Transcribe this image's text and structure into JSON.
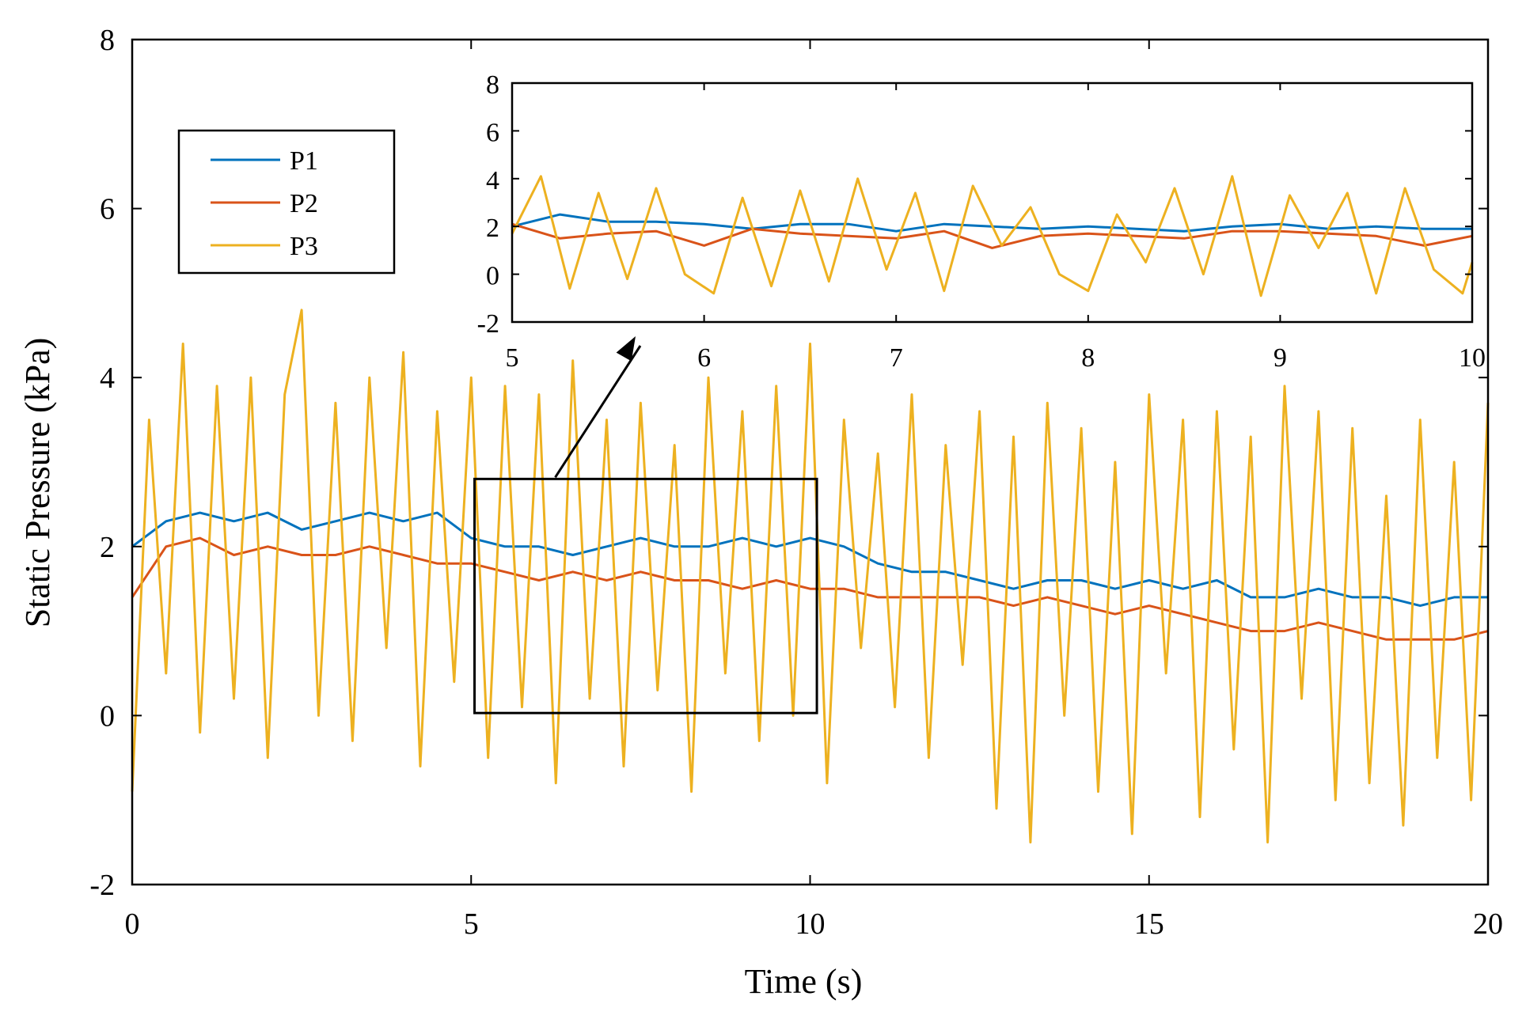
{
  "chart_data": [
    {
      "type": "line",
      "role": "main",
      "xlabel": "Time (s)",
      "ylabel": "Static Pressure (kPa)",
      "xlim": [
        0,
        20
      ],
      "ylim": [
        -2,
        8
      ],
      "xticks": [
        0,
        5,
        10,
        15,
        20
      ],
      "yticks": [
        -2,
        0,
        2,
        4,
        6,
        8
      ],
      "grid": false,
      "legend_position": "top-left",
      "colors": {
        "P1": "#0072BD",
        "P2": "#D95319",
        "P3": "#EDB120"
      },
      "series": [
        {
          "name": "P1",
          "x": [
            0,
            0.5,
            1,
            1.5,
            2,
            2.5,
            3,
            3.5,
            4,
            4.5,
            5,
            5.5,
            6,
            6.5,
            7,
            7.5,
            8,
            8.5,
            9,
            9.5,
            10,
            10.5,
            11,
            11.5,
            12,
            12.5,
            13,
            13.5,
            14,
            14.5,
            15,
            15.5,
            16,
            16.5,
            17,
            17.5,
            18,
            18.5,
            19,
            19.5,
            20
          ],
          "values": [
            2.0,
            2.3,
            2.4,
            2.3,
            2.4,
            2.2,
            2.3,
            2.4,
            2.3,
            2.4,
            2.1,
            2.0,
            2.0,
            1.9,
            2.0,
            2.1,
            2.0,
            2.0,
            2.1,
            2.0,
            2.1,
            2.0,
            1.8,
            1.7,
            1.7,
            1.6,
            1.5,
            1.6,
            1.6,
            1.5,
            1.6,
            1.5,
            1.6,
            1.4,
            1.4,
            1.5,
            1.4,
            1.4,
            1.3,
            1.4,
            1.4
          ]
        },
        {
          "name": "P2",
          "x": [
            0,
            0.5,
            1,
            1.5,
            2,
            2.5,
            3,
            3.5,
            4,
            4.5,
            5,
            5.5,
            6,
            6.5,
            7,
            7.5,
            8,
            8.5,
            9,
            9.5,
            10,
            10.5,
            11,
            11.5,
            12,
            12.5,
            13,
            13.5,
            14,
            14.5,
            15,
            15.5,
            16,
            16.5,
            17,
            17.5,
            18,
            18.5,
            19,
            19.5,
            20
          ],
          "values": [
            1.4,
            2.0,
            2.1,
            1.9,
            2.0,
            1.9,
            1.9,
            2.0,
            1.9,
            1.8,
            1.8,
            1.7,
            1.6,
            1.7,
            1.6,
            1.7,
            1.6,
            1.6,
            1.5,
            1.6,
            1.5,
            1.5,
            1.4,
            1.4,
            1.4,
            1.4,
            1.3,
            1.4,
            1.3,
            1.2,
            1.3,
            1.2,
            1.1,
            1.0,
            1.0,
            1.1,
            1.0,
            0.9,
            0.9,
            0.9,
            1.0
          ]
        },
        {
          "name": "P3",
          "x": [
            0,
            0.25,
            0.5,
            0.75,
            1,
            1.25,
            1.5,
            1.75,
            2,
            2.25,
            2.5,
            2.75,
            3,
            3.25,
            3.5,
            3.75,
            4,
            4.25,
            4.5,
            4.75,
            5,
            5.25,
            5.5,
            5.75,
            6,
            6.25,
            6.5,
            6.75,
            7,
            7.25,
            7.5,
            7.75,
            8,
            8.25,
            8.5,
            8.75,
            9,
            9.25,
            9.5,
            9.75,
            10,
            10.25,
            10.5,
            10.75,
            11,
            11.25,
            11.5,
            11.75,
            12,
            12.25,
            12.5,
            12.75,
            13,
            13.25,
            13.5,
            13.75,
            14,
            14.25,
            14.5,
            14.75,
            15,
            15.25,
            15.5,
            15.75,
            16,
            16.25,
            16.5,
            16.75,
            17,
            17.25,
            17.5,
            17.75,
            18,
            18.25,
            18.5,
            18.75,
            19,
            19.25,
            19.5,
            19.75,
            20
          ],
          "values": [
            -0.9,
            3.5,
            0.5,
            4.4,
            -0.2,
            3.9,
            0.2,
            4.0,
            -0.5,
            3.8,
            4.8,
            0.0,
            3.7,
            -0.3,
            4.0,
            0.8,
            4.3,
            -0.6,
            3.6,
            0.4,
            4.0,
            -0.5,
            3.9,
            0.1,
            3.8,
            -0.8,
            4.2,
            0.2,
            3.5,
            -0.6,
            3.7,
            0.3,
            3.2,
            -0.9,
            4.0,
            0.5,
            3.6,
            -0.3,
            3.9,
            0.0,
            4.4,
            -0.8,
            3.5,
            0.8,
            3.1,
            0.1,
            3.8,
            -0.5,
            3.2,
            0.6,
            3.6,
            -1.1,
            3.3,
            -1.5,
            3.7,
            0.0,
            3.4,
            -0.9,
            3.0,
            -1.4,
            3.8,
            0.5,
            3.5,
            -1.2,
            3.6,
            -0.4,
            3.3,
            -1.5,
            3.9,
            0.2,
            3.6,
            -1.0,
            3.4,
            -0.8,
            2.6,
            -1.3,
            3.5,
            -0.5,
            3.0,
            -1.0,
            3.7
          ]
        }
      ]
    },
    {
      "type": "line",
      "role": "inset",
      "xlim": [
        5,
        10
      ],
      "ylim": [
        -2,
        8
      ],
      "xticks": [
        5,
        6,
        7,
        8,
        9,
        10
      ],
      "yticks": [
        -2,
        0,
        2,
        4,
        6,
        8
      ],
      "grid": false,
      "series": [
        {
          "name": "P1",
          "x": [
            5,
            5.25,
            5.5,
            5.75,
            6,
            6.25,
            6.5,
            6.75,
            7,
            7.25,
            7.5,
            7.75,
            8,
            8.25,
            8.5,
            8.75,
            9,
            9.25,
            9.5,
            9.75,
            10
          ],
          "values": [
            2.0,
            2.5,
            2.2,
            2.2,
            2.1,
            1.9,
            2.1,
            2.1,
            1.8,
            2.1,
            2.0,
            1.9,
            2.0,
            1.9,
            1.8,
            2.0,
            2.1,
            1.9,
            2.0,
            1.9,
            1.9
          ]
        },
        {
          "name": "P2",
          "x": [
            5,
            5.25,
            5.5,
            5.75,
            6,
            6.25,
            6.5,
            6.75,
            7,
            7.25,
            7.5,
            7.75,
            8,
            8.25,
            8.5,
            8.75,
            9,
            9.25,
            9.5,
            9.75,
            10
          ],
          "values": [
            2.1,
            1.5,
            1.7,
            1.8,
            1.2,
            1.9,
            1.7,
            1.6,
            1.5,
            1.8,
            1.1,
            1.6,
            1.7,
            1.6,
            1.5,
            1.8,
            1.8,
            1.7,
            1.6,
            1.2,
            1.6
          ]
        },
        {
          "name": "P3",
          "x": [
            5,
            5.15,
            5.3,
            5.45,
            5.6,
            5.75,
            5.9,
            6.05,
            6.2,
            6.35,
            6.5,
            6.65,
            6.8,
            6.95,
            7.1,
            7.25,
            7.4,
            7.55,
            7.7,
            7.85,
            8,
            8.15,
            8.3,
            8.45,
            8.6,
            8.75,
            8.9,
            9.05,
            9.2,
            9.35,
            9.5,
            9.65,
            9.8,
            9.95,
            10
          ],
          "values": [
            1.7,
            4.1,
            -0.6,
            3.4,
            -0.2,
            3.6,
            0.0,
            -0.8,
            3.2,
            -0.5,
            3.5,
            -0.3,
            4.0,
            0.2,
            3.4,
            -0.7,
            3.7,
            1.2,
            2.8,
            0.0,
            -0.7,
            2.5,
            0.5,
            3.6,
            0.0,
            4.1,
            -0.9,
            3.3,
            1.1,
            3.4,
            -0.8,
            3.6,
            0.2,
            -0.8,
            0.5
          ]
        }
      ]
    }
  ]
}
